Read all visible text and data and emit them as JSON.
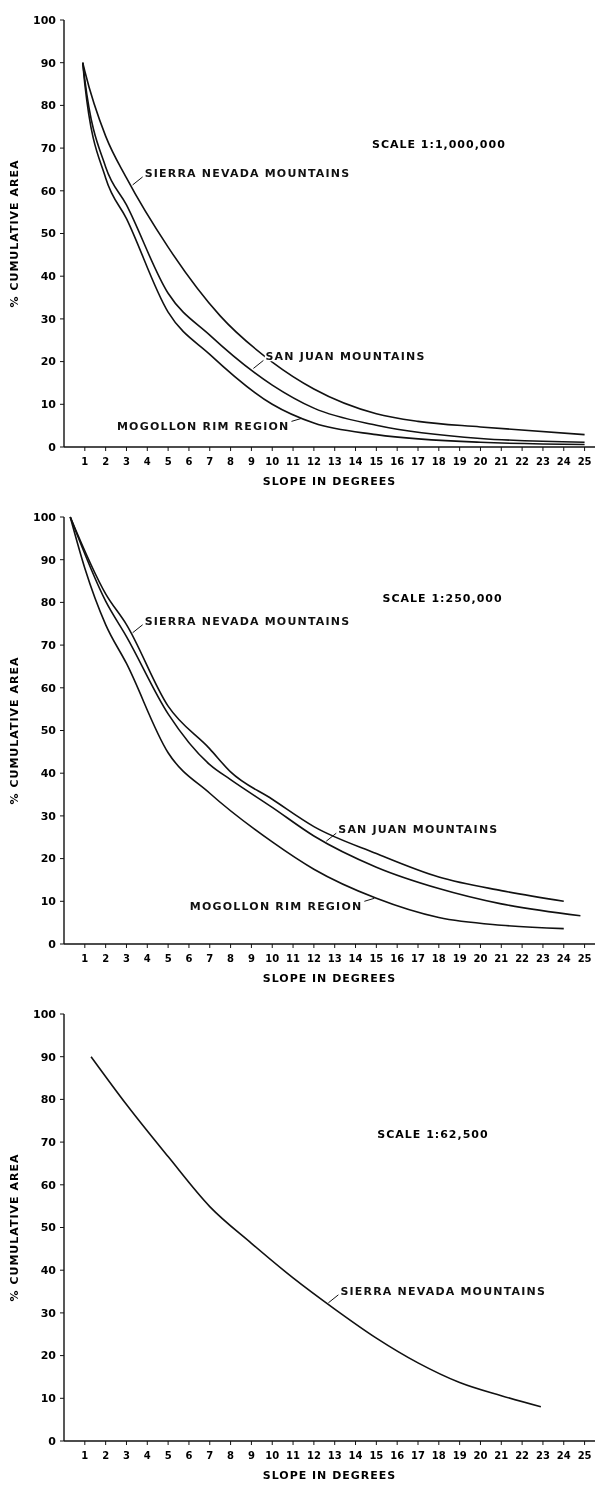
{
  "chart_data": [
    {
      "type": "line",
      "xlabel": "SLOPE IN DEGREES",
      "ylabel": "% CUMULATIVE AREA",
      "annotations": [
        "SCALE 1:1,000,000"
      ],
      "xlim": [
        0,
        25.5
      ],
      "ylim": [
        0,
        100
      ],
      "xticks": [
        1,
        2,
        3,
        4,
        5,
        6,
        7,
        8,
        9,
        10,
        11,
        12,
        13,
        14,
        15,
        16,
        17,
        18,
        19,
        20,
        21,
        22,
        23,
        24,
        25
      ],
      "yticks": [
        0,
        10,
        20,
        30,
        40,
        50,
        60,
        70,
        80,
        90,
        100
      ],
      "grid": false,
      "legend": "center",
      "series": [
        {
          "name": "SIERRA NEVADA MOUNTAINS",
          "color": "#111111",
          "x": [
            0.9,
            1,
            2,
            3,
            5,
            7.5,
            10,
            12,
            15,
            17,
            20,
            25
          ],
          "values": [
            90,
            88,
            72.8,
            63,
            46.8,
            30.7,
            19.9,
            13.6,
            7.8,
            6,
            4.7,
            2.9
          ]
        },
        {
          "name": "SAN JUAN MOUNTAINS",
          "color": "#111111",
          "x": [
            0.9,
            1,
            2,
            3,
            5,
            7,
            10,
            12,
            15,
            20,
            25
          ],
          "values": [
            90,
            86,
            65.6,
            56.7,
            36,
            26.2,
            14.5,
            9.1,
            5.1,
            2,
            1.1
          ]
        },
        {
          "name": "MOGOLLON RIM REGION",
          "color": "#111111",
          "x": [
            0.9,
            1,
            2,
            3,
            5,
            7,
            10,
            12,
            15,
            20,
            25
          ],
          "values": [
            90,
            85,
            63,
            53.5,
            31.6,
            21.7,
            10,
            5.6,
            2.9,
            1.1,
            0.6
          ]
        }
      ]
    },
    {
      "type": "line",
      "xlabel": "SLOPE IN DEGREES",
      "ylabel": "% CUMULATIVE AREA",
      "annotations": [
        "SCALE 1:250,000"
      ],
      "xlim": [
        0,
        25.5
      ],
      "ylim": [
        0,
        100
      ],
      "xticks": [
        1,
        2,
        3,
        4,
        5,
        6,
        7,
        8,
        9,
        10,
        11,
        12,
        13,
        14,
        15,
        16,
        17,
        18,
        19,
        20,
        21,
        22,
        23,
        24,
        25
      ],
      "yticks": [
        0,
        10,
        20,
        30,
        40,
        50,
        60,
        70,
        80,
        90,
        100
      ],
      "grid": false,
      "legend": "center",
      "series": [
        {
          "name": "SIERRA NEVADA MOUNTAINS",
          "color": "#111111",
          "x": [
            0.3,
            2,
            3,
            5,
            7,
            8,
            10,
            12,
            15,
            18,
            21,
            24
          ],
          "values": [
            100,
            82,
            74.8,
            55.7,
            45.7,
            40.3,
            33.9,
            27.5,
            21.2,
            15.7,
            12.5,
            10
          ]
        },
        {
          "name": "SAN JUAN MOUNTAINS",
          "color": "#111111",
          "x": [
            0.3,
            2,
            3,
            5,
            7,
            8,
            10,
            12,
            15,
            18,
            21,
            24.8
          ],
          "values": [
            100,
            80.3,
            72,
            53.9,
            42,
            38.5,
            32,
            25.3,
            18,
            13,
            9.4,
            6.6
          ]
        },
        {
          "name": "MOGOLLON RIM REGION",
          "color": "#111111",
          "x": [
            0.3,
            1,
            2,
            3,
            5,
            7,
            10,
            12,
            15,
            18,
            21,
            24
          ],
          "values": [
            100,
            88,
            74.8,
            65.7,
            44.8,
            35.3,
            23.9,
            17.5,
            10.7,
            6.2,
            4.4,
            3.6
          ]
        }
      ]
    },
    {
      "type": "line",
      "xlabel": "SLOPE IN DEGREES",
      "ylabel": "% CUMULATIVE AREA",
      "annotations": [
        "SCALE 1:62,500"
      ],
      "xlim": [
        0,
        25.5
      ],
      "ylim": [
        0,
        100
      ],
      "xticks": [
        1,
        2,
        3,
        4,
        5,
        6,
        7,
        8,
        9,
        10,
        11,
        12,
        13,
        14,
        15,
        16,
        17,
        18,
        19,
        20,
        21,
        22,
        23,
        24,
        25
      ],
      "yticks": [
        0,
        10,
        20,
        30,
        40,
        50,
        60,
        70,
        80,
        90,
        100
      ],
      "grid": false,
      "series": [
        {
          "name": "SIERRA NEVADA MOUNTAINS",
          "color": "#111111",
          "x": [
            1.3,
            3,
            5,
            7,
            9,
            11,
            13,
            15,
            17,
            19,
            21,
            22.9
          ],
          "values": [
            90,
            78.8,
            66.6,
            54.9,
            46.3,
            38.2,
            30.9,
            24.1,
            18.3,
            13.7,
            10.6,
            8
          ]
        }
      ]
    }
  ]
}
